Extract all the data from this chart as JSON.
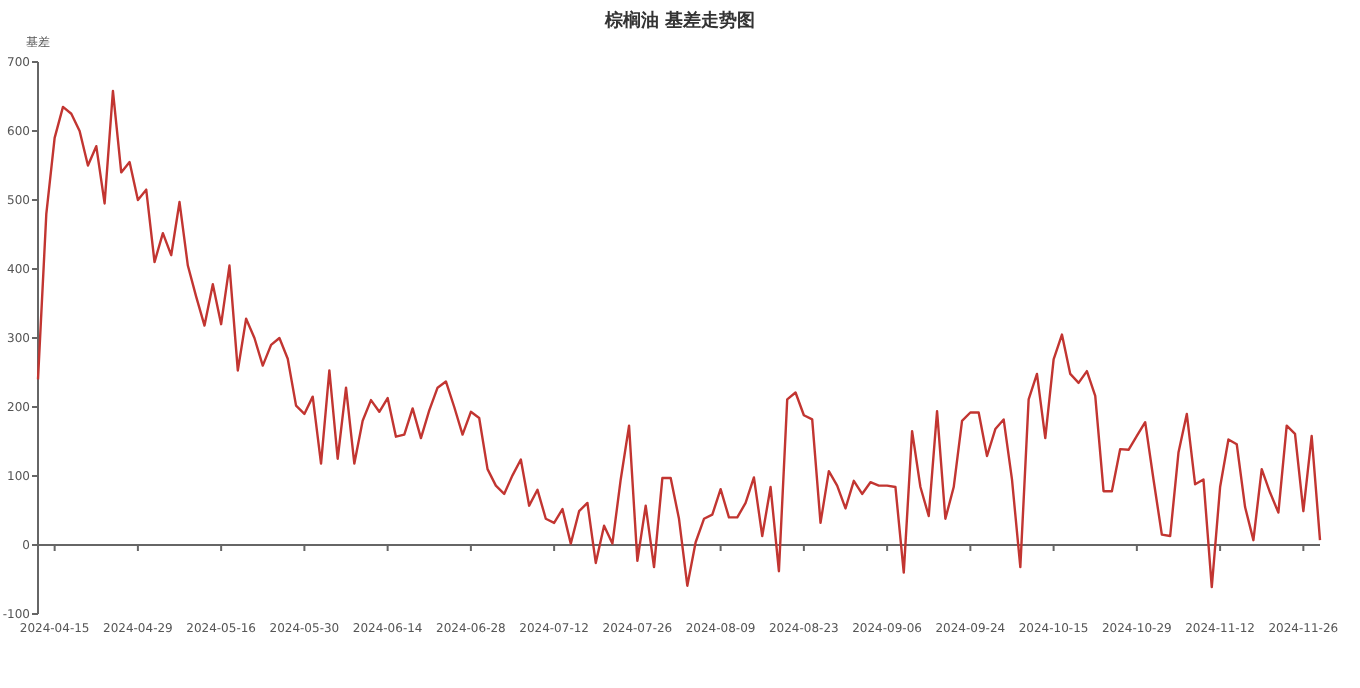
{
  "chart_data": {
    "type": "line",
    "title": "棕榈油 基差走势图",
    "ylabel": "基差",
    "categories": [
      null,
      null,
      "2024-04-15",
      null,
      null,
      null,
      null,
      null,
      null,
      null,
      null,
      null,
      "2024-04-29",
      null,
      null,
      null,
      null,
      null,
      null,
      null,
      null,
      null,
      "2024-05-16",
      null,
      null,
      null,
      null,
      null,
      null,
      null,
      null,
      null,
      "2024-05-30",
      null,
      null,
      null,
      null,
      null,
      null,
      null,
      null,
      null,
      "2024-06-14",
      null,
      null,
      null,
      null,
      null,
      null,
      null,
      null,
      null,
      "2024-06-28",
      null,
      null,
      null,
      null,
      null,
      null,
      null,
      null,
      null,
      "2024-07-12",
      null,
      null,
      null,
      null,
      null,
      null,
      null,
      null,
      null,
      "2024-07-26",
      null,
      null,
      null,
      null,
      null,
      null,
      null,
      null,
      null,
      "2024-08-09",
      null,
      null,
      null,
      null,
      null,
      null,
      null,
      null,
      null,
      "2024-08-23",
      null,
      null,
      null,
      null,
      null,
      null,
      null,
      null,
      null,
      "2024-09-06",
      null,
      null,
      null,
      null,
      null,
      null,
      null,
      null,
      null,
      "2024-09-24",
      null,
      null,
      null,
      null,
      null,
      null,
      null,
      null,
      null,
      "2024-10-15",
      null,
      null,
      null,
      null,
      null,
      null,
      null,
      null,
      null,
      "2024-10-29",
      null,
      null,
      null,
      null,
      null,
      null,
      null,
      null,
      null,
      "2024-11-12",
      null,
      null,
      null,
      null,
      null,
      null,
      null,
      null,
      null,
      "2024-11-26",
      null,
      null
    ],
    "values": [
      240,
      480,
      590,
      635,
      625,
      600,
      550,
      578,
      495,
      658,
      540,
      555,
      500,
      515,
      410,
      452,
      420,
      497,
      405,
      360,
      318,
      378,
      320,
      405,
      253,
      328,
      300,
      260,
      290,
      300,
      270,
      202,
      190,
      215,
      118,
      253,
      125,
      228,
      118,
      180,
      210,
      193,
      213,
      157,
      160,
      198,
      155,
      195,
      228,
      237,
      200,
      160,
      193,
      184,
      110,
      86,
      74,
      101,
      124,
      57,
      80,
      38,
      32,
      52,
      2,
      49,
      61,
      -26,
      28,
      2,
      95,
      173,
      -23,
      57,
      -32,
      97,
      97,
      38,
      -59,
      4,
      38,
      44,
      81,
      40,
      40,
      61,
      98,
      13,
      84,
      -38,
      211,
      221,
      188,
      182,
      32,
      107,
      86,
      53,
      93,
      74,
      91,
      86,
      86,
      84,
      -40,
      165,
      84,
      42,
      194,
      38,
      84,
      180,
      192,
      192,
      129,
      168,
      182,
      95,
      -32,
      211,
      248,
      155,
      269,
      305,
      248,
      235,
      252,
      216,
      78,
      78,
      139,
      138,
      158,
      178,
      95,
      15,
      13,
      134,
      190,
      88,
      95,
      -61,
      84,
      153,
      146,
      55,
      7,
      110,
      76,
      47,
      173,
      161,
      49,
      158,
      7
    ],
    "color": "#c23531",
    "ylim": [
      -100,
      700
    ],
    "yticks": [
      -100,
      0,
      100,
      200,
      300,
      400,
      500,
      600,
      700
    ],
    "marker": "none"
  }
}
